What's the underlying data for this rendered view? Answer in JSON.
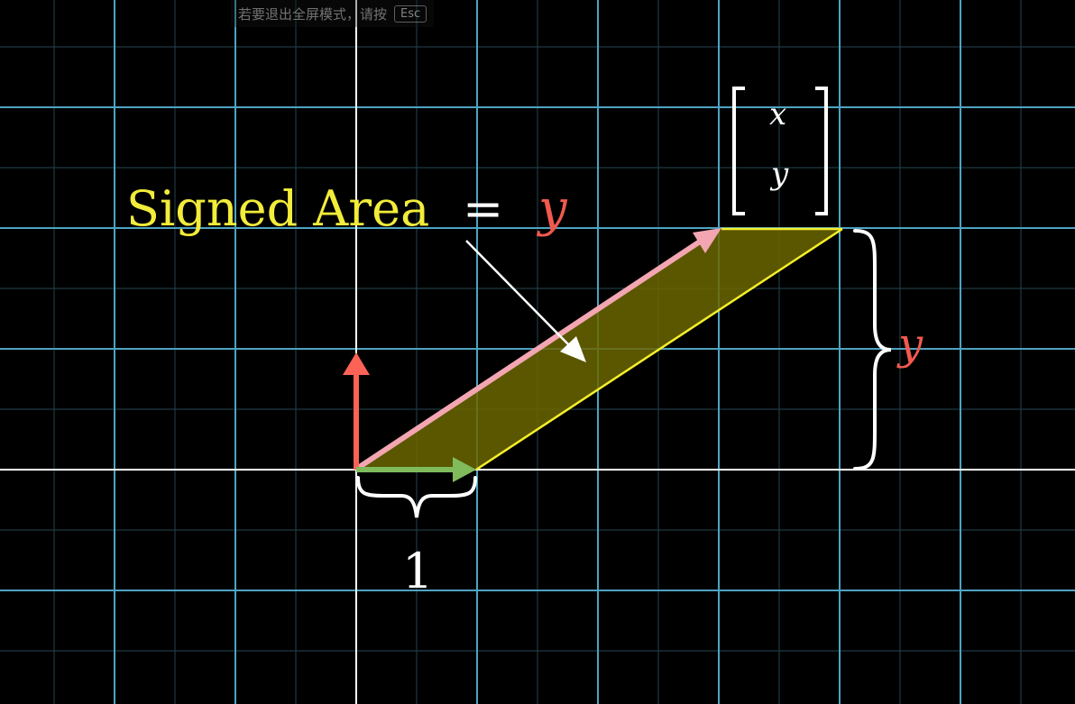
{
  "overlay": {
    "fullscreen_hint_text": "若要退出全屏模式，请按",
    "esc_key_label": "Esc"
  },
  "diagram": {
    "title_text": "Signed Area",
    "equals_symbol": "=",
    "title_value": "y",
    "matrix_entries": [
      "x",
      "y"
    ],
    "height_label": "y",
    "base_label": "1"
  },
  "colors": {
    "background": "#000000",
    "grid_minor": "#1f3a44",
    "grid_major": "#4ea3c2",
    "axis": "#ffffff",
    "title": "#f2ec3a",
    "value_red": "#f05a4e",
    "vector_i_green": "#80bc5c",
    "vector_j_red": "#fc6255",
    "vector_xy_pink": "#f3a6b2",
    "parallelogram_fill": "#6b6600",
    "parallelogram_edge": "#f5ef2a"
  },
  "icons": {
    "esc_key": "keyboard-key-icon",
    "brace_right": "curly-brace-right-icon",
    "brace_bottom": "curly-brace-bottom-icon",
    "pointer_arrow": "arrow-icon"
  }
}
